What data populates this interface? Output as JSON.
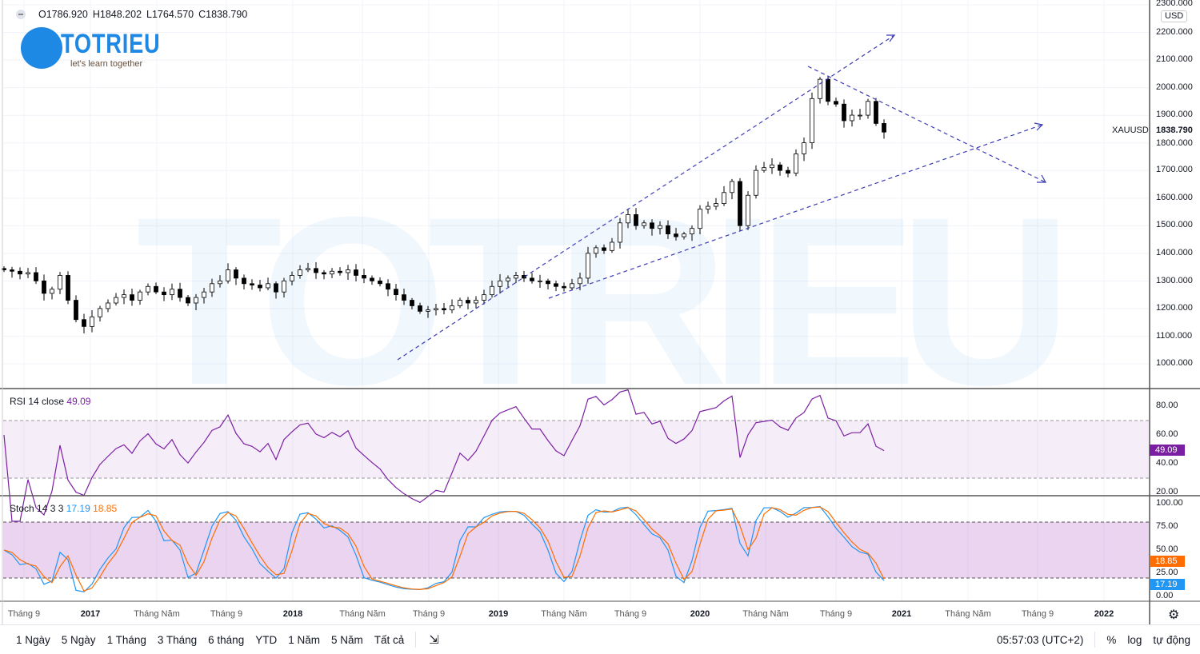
{
  "legend": {
    "open": "O1786.920",
    "high": "H1848.202",
    "low": "L1764.570",
    "close": "C1838.790"
  },
  "logo": {
    "name": "TOTRIEU",
    "tagline": "let's learn together"
  },
  "price_axis": {
    "currency": "USD",
    "symbol": "XAUUSD",
    "last": "1838.790",
    "ticks": [
      "2300.000",
      "2200.000",
      "2100.000",
      "2000.000",
      "1900.000",
      "1800.000",
      "1700.000",
      "1600.000",
      "1500.000",
      "1400.000",
      "1300.000",
      "1200.000",
      "1100.000",
      "1000.000"
    ]
  },
  "rsi": {
    "label": "RSI 14 close",
    "value": "49.09",
    "ticks": [
      "80.00",
      "60.00",
      "40.00",
      "20.00"
    ],
    "color": "#7b1fa2"
  },
  "stoch": {
    "label": "Stoch 14 3 3",
    "k": "17.19",
    "d": "18.85",
    "ticks": [
      "100.00",
      "75.00",
      "50.00",
      "25.00",
      "0.00"
    ],
    "k_color": "#2196f3",
    "d_color": "#ff6d00"
  },
  "time_axis": [
    "Tháng 9",
    "2017",
    "Tháng Năm",
    "Tháng 9",
    "2018",
    "Tháng Năm",
    "Tháng 9",
    "2019",
    "Tháng Năm",
    "Tháng 9",
    "2020",
    "Tháng Năm",
    "Tháng 9",
    "2021",
    "Tháng Năm",
    "Tháng 9",
    "2022"
  ],
  "toolbar": {
    "ranges": [
      "1 Ngày",
      "5 Ngày",
      "1 Tháng",
      "3 Tháng",
      "6 tháng",
      "YTD",
      "1 Năm",
      "5 Năm",
      "Tất cả"
    ],
    "clock": "05:57:03 (UTC+2)",
    "percent": "%",
    "log": "log",
    "auto": "tự động"
  },
  "chart_data": {
    "type": "candlestick",
    "symbol": "XAUUSD",
    "closes": [
      1340,
      1335,
      1325,
      1330,
      1300,
      1255,
      1270,
      1320,
      1230,
      1160,
      1135,
      1170,
      1200,
      1220,
      1240,
      1250,
      1230,
      1260,
      1280,
      1260,
      1250,
      1270,
      1240,
      1220,
      1240,
      1260,
      1290,
      1300,
      1340,
      1310,
      1290,
      1285,
      1275,
      1290,
      1260,
      1300,
      1320,
      1340,
      1345,
      1330,
      1325,
      1335,
      1330,
      1340,
      1320,
      1310,
      1300,
      1290,
      1270,
      1250,
      1230,
      1210,
      1190,
      1195,
      1200,
      1195,
      1210,
      1230,
      1220,
      1230,
      1250,
      1280,
      1300,
      1310,
      1320,
      1310,
      1300,
      1300,
      1290,
      1280,
      1275,
      1290,
      1310,
      1400,
      1420,
      1410,
      1440,
      1510,
      1540,
      1500,
      1510,
      1490,
      1500,
      1470,
      1460,
      1470,
      1490,
      1560,
      1570,
      1580,
      1620,
      1660,
      1500,
      1610,
      1700,
      1710,
      1720,
      1700,
      1690,
      1760,
      1800,
      1960,
      2030,
      1950,
      1940,
      1880,
      1900,
      1900,
      1950,
      1870,
      1838.79
    ],
    "ylim": [
      1000,
      2300
    ],
    "up_color": "#ffffff",
    "down_color": "#000000"
  }
}
